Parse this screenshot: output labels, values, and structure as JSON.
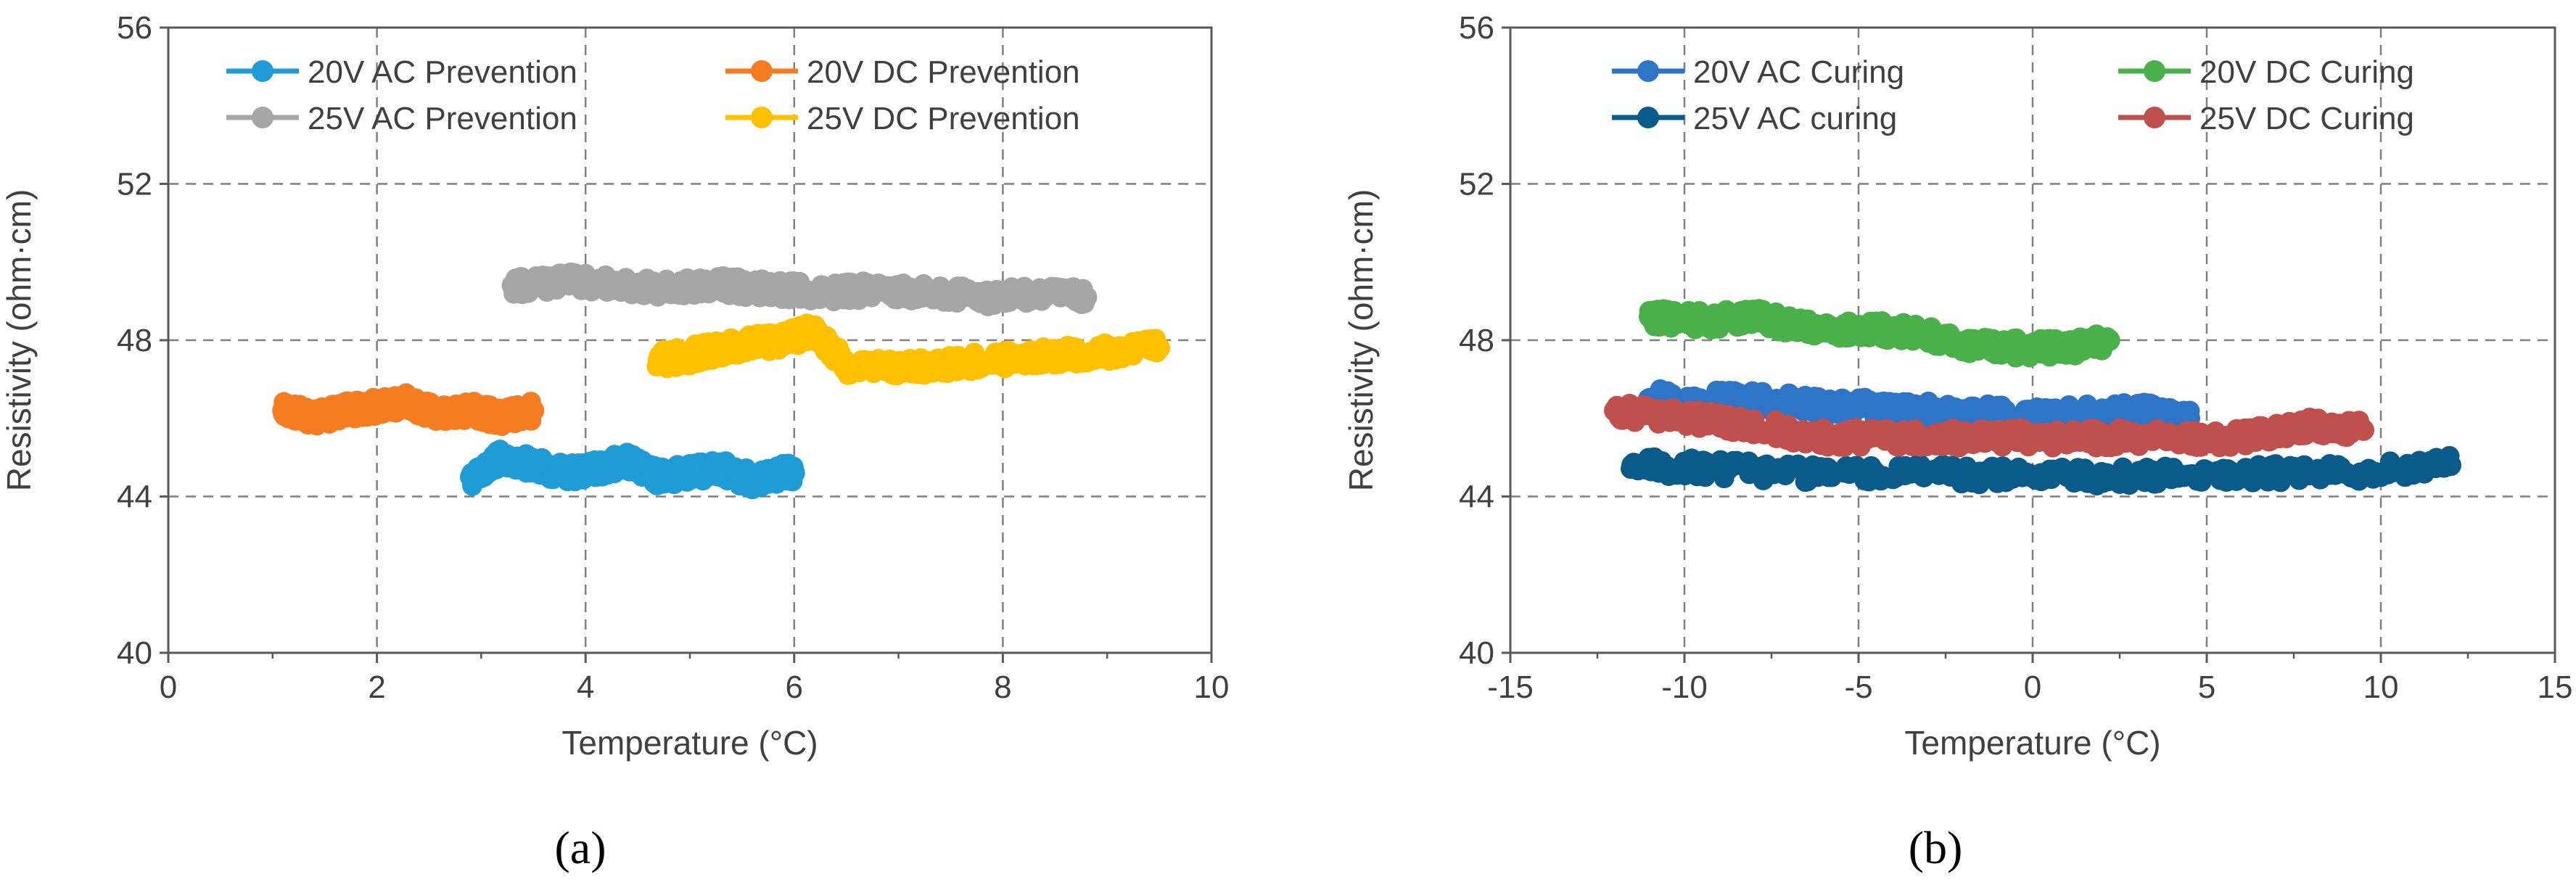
{
  "chart_data": [
    {
      "type": "scatter",
      "panel_label": "(a)",
      "xlabel": "Temperature (°C)",
      "ylabel": "Resistivity (ohm·cm)",
      "xlim": [
        0,
        10
      ],
      "ylim": [
        40,
        56
      ],
      "xticks": [
        0,
        2,
        4,
        6,
        8,
        10
      ],
      "yticks": [
        40,
        44,
        48,
        52,
        56
      ],
      "grid": true,
      "legend_position": "top",
      "series": [
        {
          "name": "20V AC Prevention",
          "color": "#1f9bd6",
          "x": [
            2.9,
            3.2,
            3.5,
            3.8,
            4.1,
            4.4,
            4.7,
            5.0,
            5.3,
            5.6,
            5.9,
            6.0
          ],
          "y": [
            44.5,
            45.0,
            44.8,
            44.6,
            44.7,
            44.9,
            44.5,
            44.6,
            44.7,
            44.4,
            44.6,
            44.6
          ]
        },
        {
          "name": "20V DC Prevention",
          "color": "#f57c20",
          "x": [
            1.1,
            1.4,
            1.7,
            2.0,
            2.3,
            2.6,
            2.9,
            3.2,
            3.5
          ],
          "y": [
            46.2,
            46.0,
            46.2,
            46.3,
            46.4,
            46.1,
            46.2,
            46.0,
            46.2
          ]
        },
        {
          "name": "25V AC Prevention",
          "color": "#a6a6a6",
          "x": [
            3.3,
            3.8,
            4.3,
            4.8,
            5.3,
            5.8,
            6.3,
            6.8,
            7.3,
            7.8,
            8.3,
            8.8
          ],
          "y": [
            49.4,
            49.5,
            49.4,
            49.3,
            49.4,
            49.3,
            49.2,
            49.3,
            49.2,
            49.1,
            49.2,
            49.1
          ]
        },
        {
          "name": "25V DC Prevention",
          "color": "#ffc000",
          "x": [
            4.7,
            5.0,
            5.3,
            5.6,
            5.9,
            6.2,
            6.5,
            7.0,
            7.5,
            8.0,
            8.5,
            9.0,
            9.5
          ],
          "y": [
            47.5,
            47.6,
            47.8,
            47.9,
            48.0,
            48.3,
            47.3,
            47.3,
            47.4,
            47.5,
            47.6,
            47.7,
            47.8
          ]
        }
      ]
    },
    {
      "type": "scatter",
      "panel_label": "(b)",
      "xlabel": "Temperature (°C)",
      "ylabel": "Resistivity (ohm·cm)",
      "xlim": [
        -15,
        15
      ],
      "ylim": [
        40,
        56
      ],
      "xticks": [
        -15,
        -10,
        -5,
        0,
        5,
        10,
        15
      ],
      "yticks": [
        40,
        44,
        48,
        52,
        56
      ],
      "grid": true,
      "legend_position": "top",
      "series": [
        {
          "name": "20V AC Curing",
          "color": "#2e75c7",
          "x": [
            -11,
            -9,
            -7,
            -5,
            -3,
            -1,
            1,
            3,
            4.5
          ],
          "y": [
            46.5,
            46.5,
            46.4,
            46.3,
            46.2,
            46.1,
            46.1,
            46.2,
            46.0
          ]
        },
        {
          "name": "20V DC Curing",
          "color": "#4ab04a",
          "x": [
            -11,
            -9.5,
            -8,
            -6.5,
            -5,
            -3.5,
            -2,
            -0.5,
            1,
            2.2
          ],
          "y": [
            48.6,
            48.5,
            48.6,
            48.3,
            48.3,
            48.2,
            47.9,
            47.8,
            47.8,
            48.0
          ]
        },
        {
          "name": "25V AC curing",
          "color": "#0a5a8a",
          "x": [
            -11.5,
            -9,
            -6,
            -3,
            0,
            3,
            6,
            9,
            12
          ],
          "y": [
            44.8,
            44.7,
            44.6,
            44.6,
            44.5,
            44.5,
            44.6,
            44.6,
            44.8
          ]
        },
        {
          "name": "25V DC Curing",
          "color": "#c0504d",
          "x": [
            -12,
            -10,
            -8,
            -6,
            -4,
            -2,
            0,
            2,
            4,
            6,
            8,
            9.5
          ],
          "y": [
            46.2,
            46.0,
            45.8,
            45.5,
            45.5,
            45.5,
            45.5,
            45.5,
            45.5,
            45.5,
            45.8,
            45.7
          ]
        }
      ]
    }
  ]
}
